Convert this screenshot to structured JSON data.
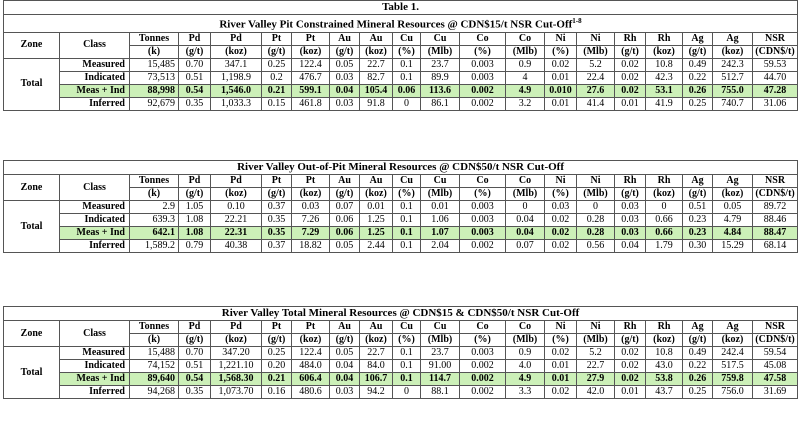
{
  "headers": {
    "zone": "Zone",
    "class": "Class",
    "cols_top": [
      "Tonnes",
      "Pd",
      "Pd",
      "Pt",
      "Pt",
      "Au",
      "Au",
      "Cu",
      "Cu",
      "Co",
      "Co",
      "Ni",
      "Ni",
      "Rh",
      "Rh",
      "Ag",
      "Ag",
      "NSR"
    ],
    "cols_bottom": [
      "(k)",
      "(g/t)",
      "(koz)",
      "(g/t)",
      "(koz)",
      "(g/t)",
      "(koz)",
      "(%)",
      "(Mlb)",
      "(%)",
      "(Mlb)",
      "(%)",
      "(Mlb)",
      "(g/t)",
      "(koz)",
      "(g/t)",
      "(koz)",
      "(CDN$/t)"
    ]
  },
  "tables": [
    {
      "label": "Table 1.",
      "title": "River Valley Pit Constrained Mineral Resources @ CDN$15/t NSR Cut-Off",
      "title_sup": "1-8",
      "zone_label": "Total",
      "rows": [
        {
          "class": "Measured",
          "values": [
            "15,485",
            "0.70",
            "347.1",
            "0.25",
            "122.4",
            "0.05",
            "22.7",
            "0.1",
            "23.7",
            "0.003",
            "0.9",
            "0.02",
            "5.2",
            "0.02",
            "10.8",
            "0.49",
            "242.3",
            "59.53"
          ]
        },
        {
          "class": "Indicated",
          "values": [
            "73,513",
            "0.51",
            "1,198.9",
            "0.2",
            "476.7",
            "0.03",
            "82.7",
            "0.1",
            "89.9",
            "0.003",
            "4",
            "0.01",
            "22.4",
            "0.02",
            "42.3",
            "0.22",
            "512.7",
            "44.70"
          ]
        },
        {
          "class": "Meas + Ind",
          "values": [
            "88,998",
            "0.54",
            "1,546.0",
            "0.21",
            "599.1",
            "0.04",
            "105.4",
            "0.06",
            "113.6",
            "0.002",
            "4.9",
            "0.010",
            "27.6",
            "0.02",
            "53.1",
            "0.26",
            "755.0",
            "47.28"
          ]
        },
        {
          "class": "Inferred",
          "values": [
            "92,679",
            "0.35",
            "1,033.3",
            "0.15",
            "461.8",
            "0.03",
            "91.8",
            "0",
            "86.1",
            "0.002",
            "3.2",
            "0.01",
            "41.4",
            "0.01",
            "41.9",
            "0.25",
            "740.7",
            "31.06"
          ]
        }
      ]
    },
    {
      "title": "River Valley Out-of-Pit Mineral Resources @ CDN$50/t NSR Cut-Off",
      "zone_label": "Total",
      "rows": [
        {
          "class": "Measured",
          "values": [
            "2.9",
            "1.05",
            "0.10",
            "0.37",
            "0.03",
            "0.07",
            "0.01",
            "0.1",
            "0.01",
            "0.003",
            "0",
            "0.03",
            "0",
            "0.03",
            "0",
            "0.51",
            "0.05",
            "89.72"
          ]
        },
        {
          "class": "Indicated",
          "values": [
            "639.3",
            "1.08",
            "22.21",
            "0.35",
            "7.26",
            "0.06",
            "1.25",
            "0.1",
            "1.06",
            "0.003",
            "0.04",
            "0.02",
            "0.28",
            "0.03",
            "0.66",
            "0.23",
            "4.79",
            "88.46"
          ]
        },
        {
          "class": "Meas + Ind",
          "values": [
            "642.1",
            "1.08",
            "22.31",
            "0.35",
            "7.29",
            "0.06",
            "1.25",
            "0.1",
            "1.07",
            "0.003",
            "0.04",
            "0.02",
            "0.28",
            "0.03",
            "0.66",
            "0.23",
            "4.84",
            "88.47"
          ]
        },
        {
          "class": "Inferred",
          "values": [
            "1,589.2",
            "0.79",
            "40.38",
            "0.37",
            "18.82",
            "0.05",
            "2.44",
            "0.1",
            "2.04",
            "0.002",
            "0.07",
            "0.02",
            "0.56",
            "0.04",
            "1.79",
            "0.30",
            "15.29",
            "68.14"
          ]
        }
      ]
    },
    {
      "title": "River Valley Total Mineral Resources @ CDN$15 & CDN$50/t NSR Cut-Off",
      "zone_label": "Total",
      "rows": [
        {
          "class": "Measured",
          "values": [
            "15,488",
            "0.70",
            "347.20",
            "0.25",
            "122.4",
            "0.05",
            "22.7",
            "0.1",
            "23.7",
            "0.003",
            "0.9",
            "0.02",
            "5.2",
            "0.02",
            "10.8",
            "0.49",
            "242.4",
            "59.54"
          ]
        },
        {
          "class": "Indicated",
          "values": [
            "74,152",
            "0.51",
            "1,221.10",
            "0.20",
            "484.0",
            "0.04",
            "84.0",
            "0.1",
            "91.00",
            "0.002",
            "4.0",
            "0.01",
            "22.7",
            "0.02",
            "43.0",
            "0.22",
            "517.5",
            "45.08"
          ]
        },
        {
          "class": "Meas + Ind",
          "values": [
            "89,640",
            "0.54",
            "1,568.30",
            "0.21",
            "606.4",
            "0.04",
            "106.7",
            "0.1",
            "114.7",
            "0.002",
            "4.9",
            "0.01",
            "27.9",
            "0.02",
            "53.8",
            "0.26",
            "759.8",
            "47.58"
          ]
        },
        {
          "class": "Inferred",
          "values": [
            "94,268",
            "0.35",
            "1,073.70",
            "0.16",
            "480.6",
            "0.03",
            "94.2",
            "0",
            "88.1",
            "0.002",
            "3.3",
            "0.02",
            "42.0",
            "0.01",
            "43.7",
            "0.25",
            "756.0",
            "31.69"
          ]
        }
      ]
    }
  ]
}
